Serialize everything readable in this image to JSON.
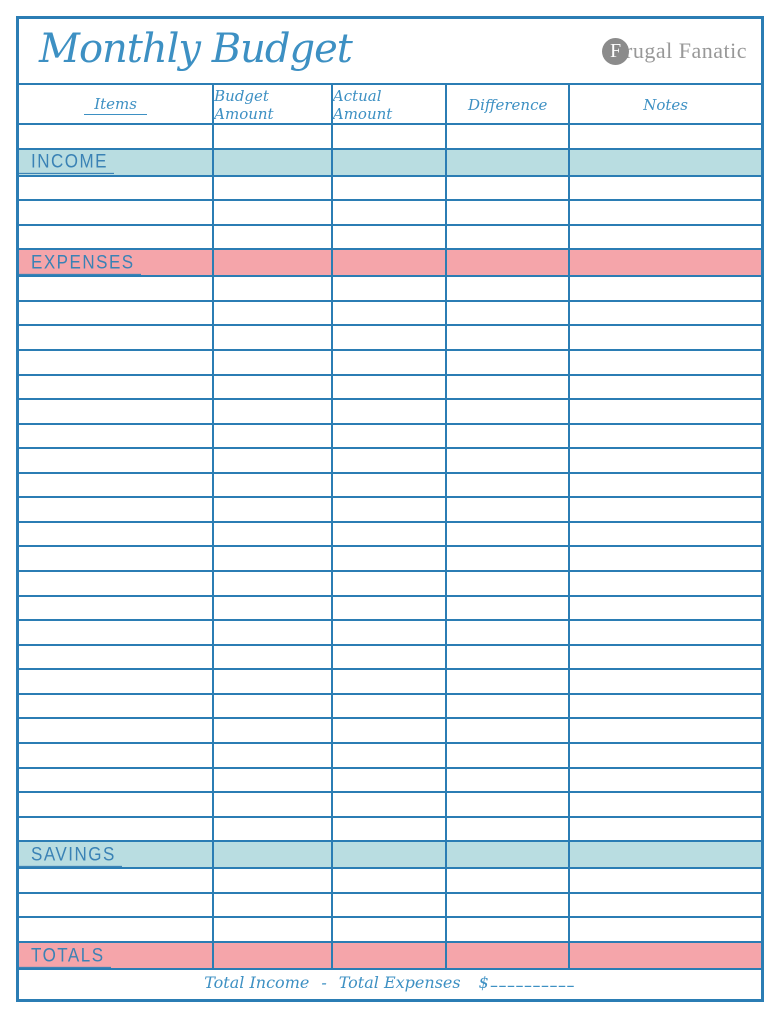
{
  "header": {
    "title": "Monthly Budget",
    "logo": {
      "initial": "F",
      "rest": "rugal Fanatic",
      "full_name": "Frugal Fanatic"
    }
  },
  "colors": {
    "grid_blue": "#2b7db4",
    "script_blue": "#3d90c3",
    "teal_band": "#b9dde1",
    "pink_band": "#f5a5aa",
    "logo_gray": "#989898",
    "logo_circle_gray": "#8b8b8b"
  },
  "table": {
    "columns": [
      {
        "id": "items",
        "label": "Items",
        "width_pct": 26.3
      },
      {
        "id": "budget_amount",
        "label": "Budget Amount",
        "width_pct": 16.0
      },
      {
        "id": "actual_amount",
        "label": "Actual Amount",
        "width_pct": 15.4
      },
      {
        "id": "difference",
        "label": "Difference",
        "width_pct": 16.6
      },
      {
        "id": "notes",
        "label": "Notes",
        "width_pct": 25.7
      }
    ],
    "layout": [
      {
        "type": "header"
      },
      {
        "type": "spacer",
        "count": 1
      },
      {
        "type": "band",
        "label": "INCOME",
        "style": "teal"
      },
      {
        "type": "spacer",
        "count": 3
      },
      {
        "type": "band",
        "label": "EXPENSES",
        "style": "pink"
      },
      {
        "type": "spacer",
        "count": 23
      },
      {
        "type": "band",
        "label": "SAVINGS",
        "style": "teal"
      },
      {
        "type": "spacer",
        "count": 3
      },
      {
        "type": "band",
        "label": "TOTALS",
        "style": "pink"
      },
      {
        "type": "footer"
      }
    ],
    "footer": {
      "minuend": "Total Income",
      "operator": "-",
      "subtrahend": "Total Expenses",
      "currency": "$",
      "blank": "__________"
    }
  }
}
